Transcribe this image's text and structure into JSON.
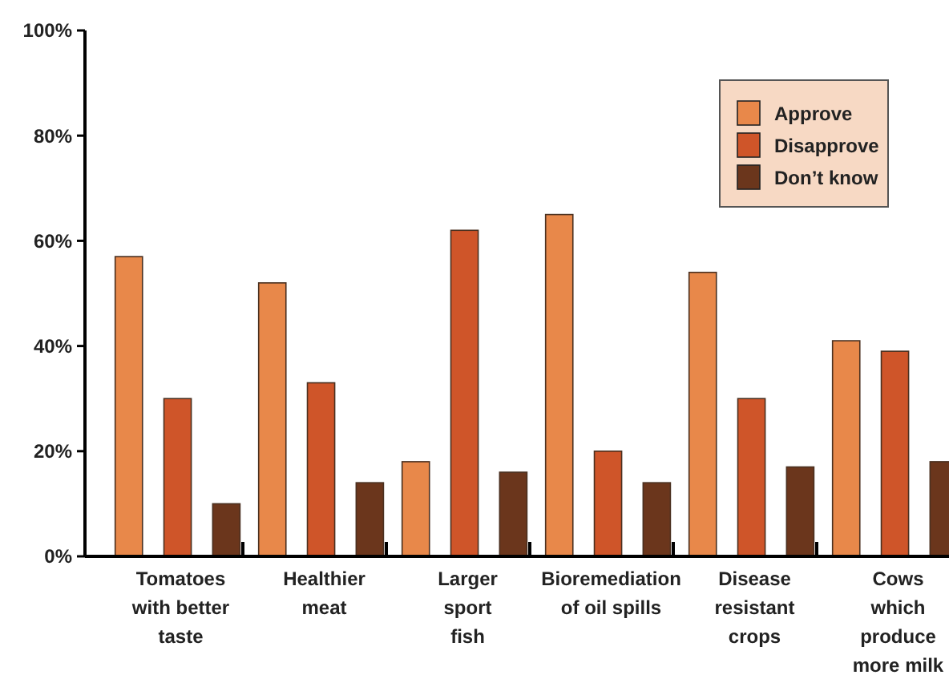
{
  "chart_data": {
    "type": "bar",
    "categories": [
      "Tomatoes\nwith better\ntaste",
      "Healthier\nmeat",
      "Larger\nsport\nfish",
      "Bioremediation\nof oil spills",
      "Disease\nresistant\ncrops",
      "Cows\nwhich\nproduce\nmore milk"
    ],
    "series": [
      {
        "name": "Approve",
        "color": "#e8884a",
        "values": [
          57,
          52,
          18,
          65,
          54,
          41
        ]
      },
      {
        "name": "Disapprove",
        "color": "#cf5529",
        "values": [
          30,
          33,
          62,
          20,
          30,
          39
        ]
      },
      {
        "name": "Don’t know",
        "color": "#6b361c",
        "values": [
          10,
          14,
          16,
          14,
          17,
          18
        ]
      }
    ],
    "ylim": [
      0,
      100
    ],
    "yticks": [
      {
        "value": 0,
        "label": "0%"
      },
      {
        "value": 20,
        "label": "20%"
      },
      {
        "value": 40,
        "label": "40%"
      },
      {
        "value": 60,
        "label": "60%"
      },
      {
        "value": 80,
        "label": "80%"
      },
      {
        "value": 100,
        "label": "100%"
      }
    ],
    "grid": false,
    "legend": "top right"
  }
}
